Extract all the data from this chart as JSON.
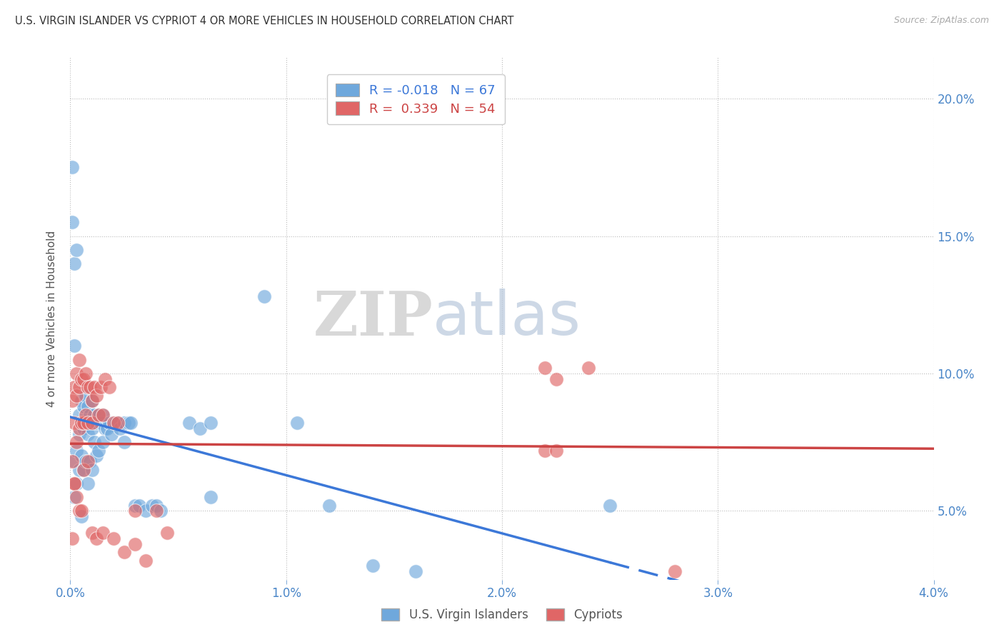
{
  "title": "U.S. VIRGIN ISLANDER VS CYPRIOT 4 OR MORE VEHICLES IN HOUSEHOLD CORRELATION CHART",
  "source": "Source: ZipAtlas.com",
  "xlabel_blue": "U.S. Virgin Islanders",
  "xlabel_pink": "Cypriots",
  "ylabel": "4 or more Vehicles in Household",
  "watermark_zip": "ZIP",
  "watermark_atlas": "atlas",
  "legend_blue_R": "-0.018",
  "legend_blue_N": "67",
  "legend_pink_R": "0.339",
  "legend_pink_N": "54",
  "xlim": [
    0.0,
    0.04
  ],
  "ylim": [
    0.025,
    0.215
  ],
  "yticks": [
    0.05,
    0.1,
    0.15,
    0.2
  ],
  "ytick_labels": [
    "5.0%",
    "10.0%",
    "15.0%",
    "20.0%"
  ],
  "xticks": [
    0.0,
    0.01,
    0.02,
    0.03,
    0.04
  ],
  "xtick_labels": [
    "0.0%",
    "1.0%",
    "2.0%",
    "3.0%",
    "4.0%"
  ],
  "blue_color": "#6fa8dc",
  "pink_color": "#e06666",
  "blue_line_color": "#3c78d8",
  "pink_line_color": "#cc4444",
  "blue_x": [
    0.0002,
    0.0002,
    0.0003,
    0.0003,
    0.0004,
    0.0004,
    0.0004,
    0.0005,
    0.0005,
    0.0005,
    0.0005,
    0.0006,
    0.0006,
    0.0006,
    0.0007,
    0.0007,
    0.0007,
    0.0008,
    0.0008,
    0.0008,
    0.0009,
    0.0009,
    0.001,
    0.001,
    0.001,
    0.0011,
    0.0011,
    0.0012,
    0.0012,
    0.0013,
    0.0013,
    0.0014,
    0.0015,
    0.0015,
    0.0016,
    0.0017,
    0.0018,
    0.0019,
    0.002,
    0.0021,
    0.0022,
    0.0023,
    0.0025,
    0.0025,
    0.0027,
    0.0028,
    0.003,
    0.0032,
    0.0035,
    0.0038,
    0.004,
    0.0042,
    0.0055,
    0.006,
    0.0065,
    0.0065,
    0.009,
    0.0105,
    0.012,
    0.014,
    0.016,
    0.025,
    0.0001,
    0.0001,
    0.0002,
    0.0002,
    0.0003
  ],
  "blue_y": [
    0.068,
    0.055,
    0.072,
    0.06,
    0.085,
    0.078,
    0.065,
    0.09,
    0.082,
    0.07,
    0.048,
    0.088,
    0.08,
    0.065,
    0.092,
    0.082,
    0.068,
    0.088,
    0.078,
    0.06,
    0.085,
    0.068,
    0.09,
    0.08,
    0.065,
    0.085,
    0.075,
    0.082,
    0.07,
    0.085,
    0.072,
    0.082,
    0.085,
    0.075,
    0.08,
    0.08,
    0.082,
    0.078,
    0.082,
    0.082,
    0.082,
    0.08,
    0.082,
    0.075,
    0.082,
    0.082,
    0.052,
    0.052,
    0.05,
    0.052,
    0.052,
    0.05,
    0.082,
    0.08,
    0.082,
    0.055,
    0.128,
    0.082,
    0.052,
    0.03,
    0.028,
    0.052,
    0.175,
    0.155,
    0.14,
    0.11,
    0.145
  ],
  "pink_x": [
    0.0001,
    0.0001,
    0.0002,
    0.0002,
    0.0002,
    0.0003,
    0.0003,
    0.0003,
    0.0004,
    0.0004,
    0.0004,
    0.0005,
    0.0005,
    0.0006,
    0.0006,
    0.0007,
    0.0007,
    0.0008,
    0.0008,
    0.0009,
    0.001,
    0.001,
    0.0011,
    0.0012,
    0.0013,
    0.0014,
    0.0015,
    0.0016,
    0.0018,
    0.002,
    0.0022,
    0.0025,
    0.003,
    0.004,
    0.0045,
    0.022,
    0.0225,
    0.024,
    0.0001,
    0.0002,
    0.0003,
    0.0004,
    0.0005,
    0.0006,
    0.0008,
    0.001,
    0.0012,
    0.0015,
    0.002,
    0.003,
    0.0035,
    0.022,
    0.0225,
    0.028
  ],
  "pink_y": [
    0.09,
    0.04,
    0.095,
    0.082,
    0.06,
    0.1,
    0.092,
    0.075,
    0.105,
    0.095,
    0.08,
    0.098,
    0.082,
    0.098,
    0.082,
    0.1,
    0.085,
    0.095,
    0.082,
    0.095,
    0.09,
    0.082,
    0.095,
    0.092,
    0.085,
    0.095,
    0.085,
    0.098,
    0.095,
    0.082,
    0.082,
    0.035,
    0.05,
    0.05,
    0.042,
    0.102,
    0.098,
    0.102,
    0.068,
    0.06,
    0.055,
    0.05,
    0.05,
    0.065,
    0.068,
    0.042,
    0.04,
    0.042,
    0.04,
    0.038,
    0.032,
    0.072,
    0.072,
    0.028
  ]
}
